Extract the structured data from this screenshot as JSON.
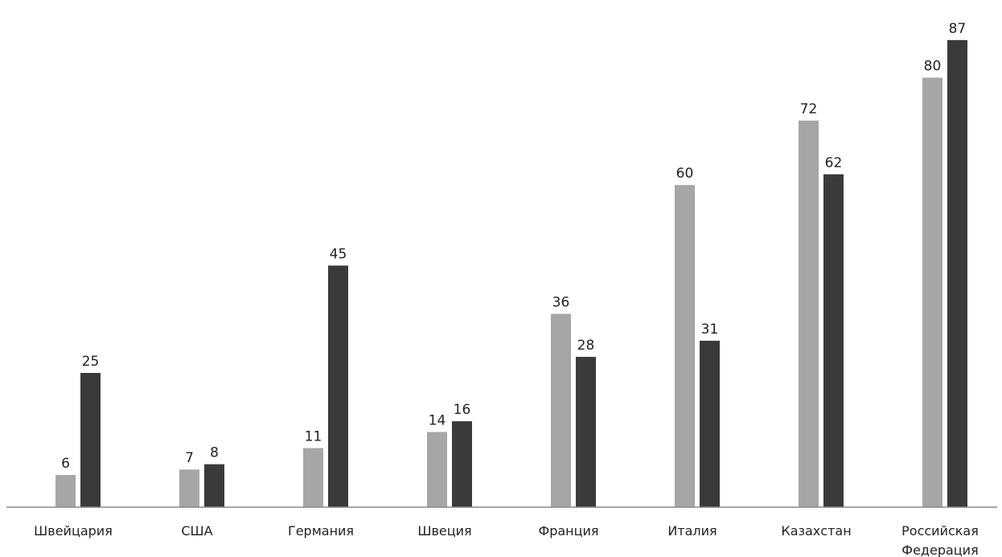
{
  "chart_data": {
    "type": "bar",
    "title": "",
    "xlabel": "",
    "ylabel": "",
    "ylim": [
      0,
      92
    ],
    "grid": false,
    "legend": "none",
    "categories": [
      [
        "Швейцария"
      ],
      [
        "США"
      ],
      [
        "Германия"
      ],
      [
        "Швеция"
      ],
      [
        "Франция"
      ],
      [
        "Италия"
      ],
      [
        "Казахстан"
      ],
      [
        "Российская",
        "Федерация"
      ]
    ],
    "series": [
      {
        "color": "#a6a6a6",
        "values": [
          6,
          7,
          11,
          14,
          36,
          60,
          72,
          80
        ]
      },
      {
        "color": "#3a3a3a",
        "values": [
          25,
          8,
          45,
          16,
          28,
          31,
          62,
          87
        ]
      }
    ],
    "axis_color": "#888888"
  }
}
